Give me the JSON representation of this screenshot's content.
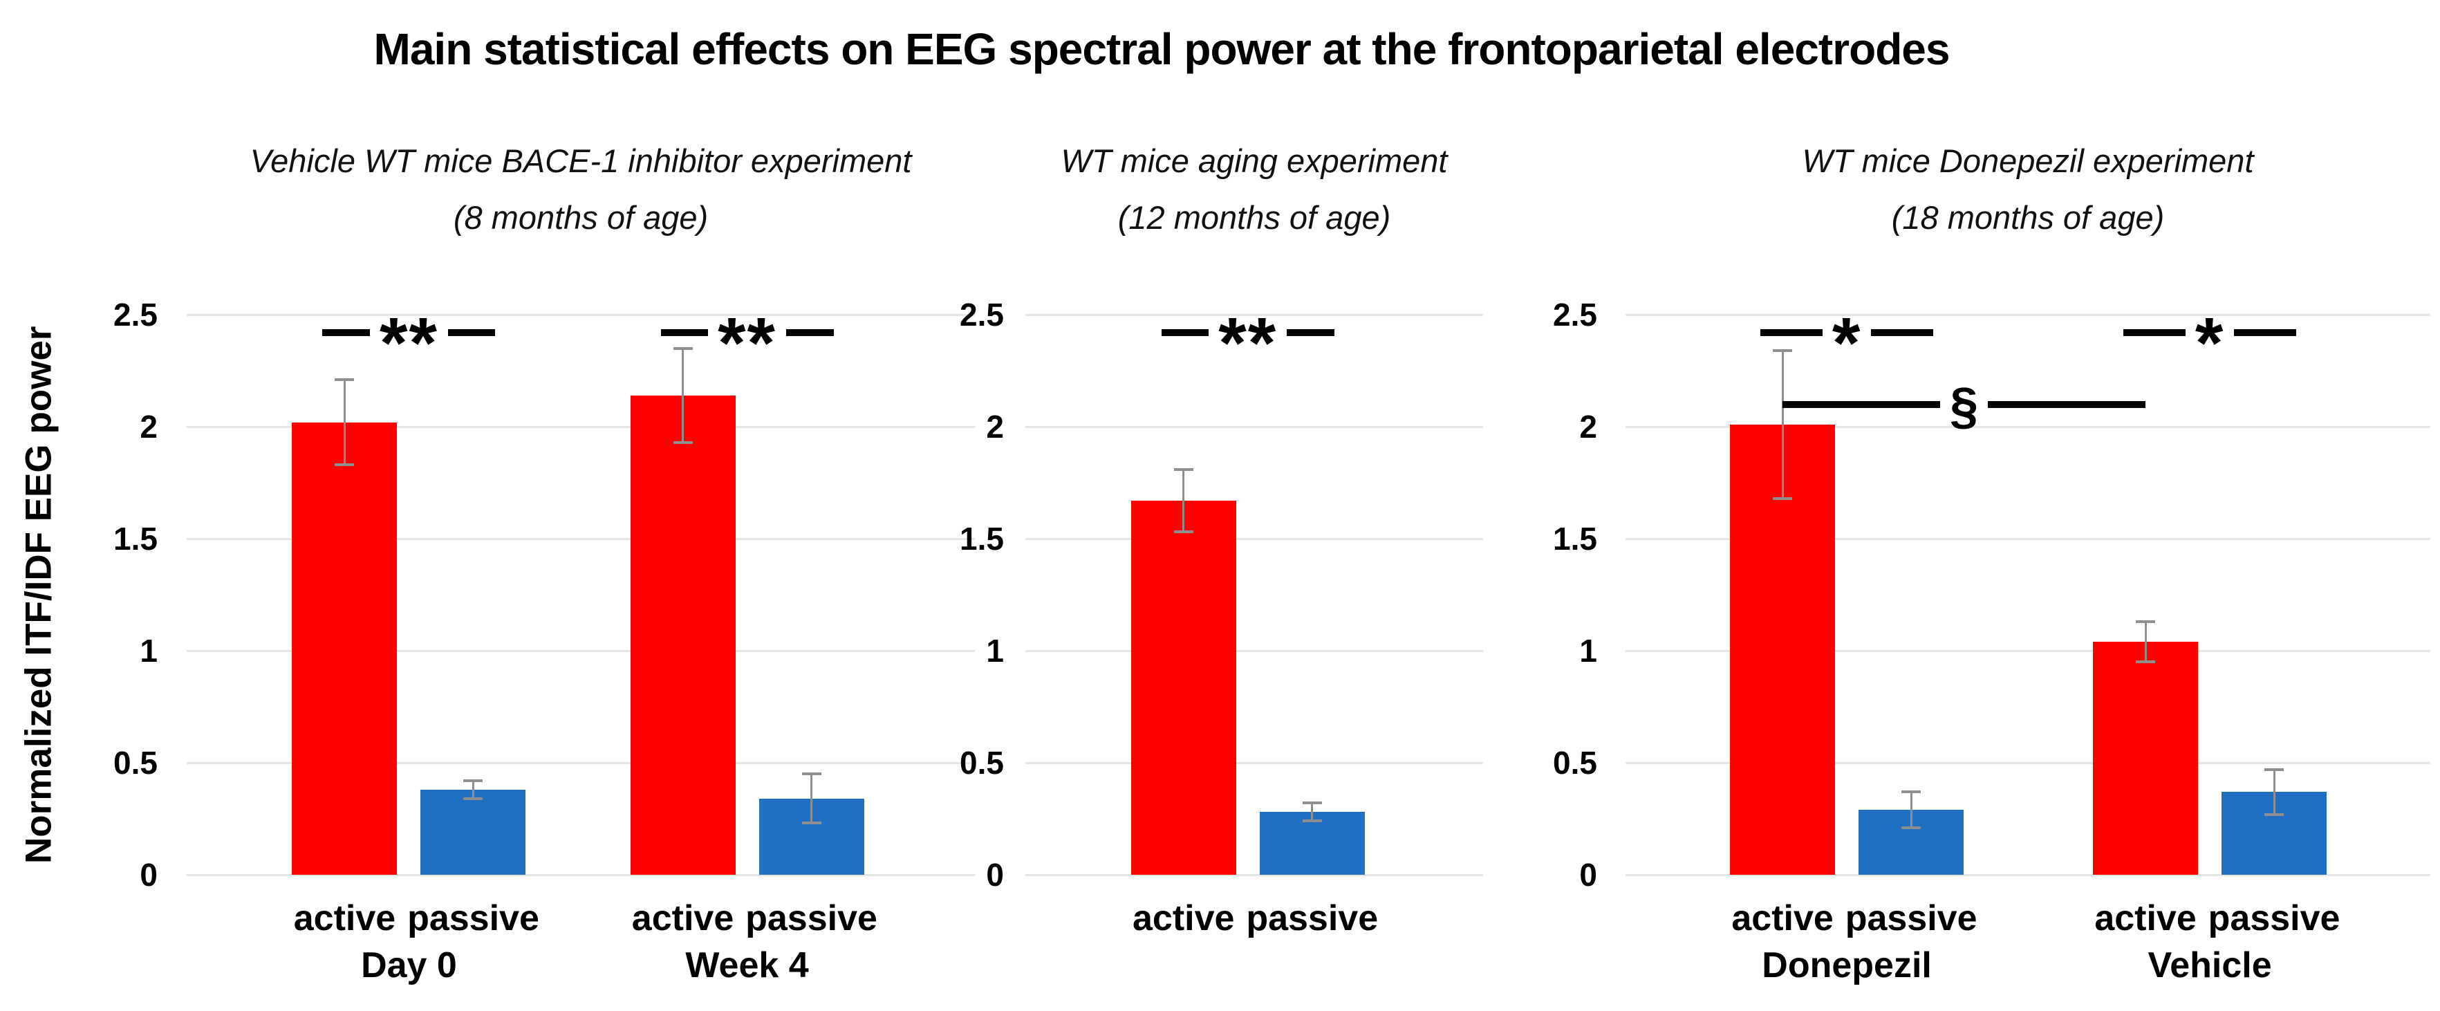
{
  "figure": {
    "title": "Main statistical effects on EEG spectral power at the frontoparietal electrodes",
    "y_axis_label": "Normalized ITF/IDF EEG power"
  },
  "colors": {
    "active_bar": "#ff0000",
    "passive_bar": "#1f6fc2",
    "error_bar": "#8e8e8e",
    "gridline": "#e4e5e5",
    "significance": "#000000"
  },
  "chart_data": [
    {
      "type": "bar",
      "title": "Vehicle WT mice BACE-1 inhibitor experiment",
      "subtitle": "(8 months of age)",
      "ylabel": "Normalized ITF/IDF EEG power",
      "ylim": [
        0,
        2.5
      ],
      "grid": true,
      "yticks": [
        {
          "v": 0,
          "label": "0"
        },
        {
          "v": 0.5,
          "label": "0.5"
        },
        {
          "v": 1,
          "label": "1"
        },
        {
          "v": 1.5,
          "label": "1.5"
        },
        {
          "v": 2,
          "label": "2"
        },
        {
          "v": 2.5,
          "label": "2.5"
        }
      ],
      "groups": [
        {
          "label": "Day 0",
          "bars": [
            {
              "label": "active",
              "series": "active",
              "value": 2.02,
              "error": 0.19
            },
            {
              "label": "passive",
              "series": "passive",
              "value": 0.38,
              "error": 0.04
            }
          ]
        },
        {
          "label": "Week 4",
          "bars": [
            {
              "label": "active",
              "series": "active",
              "value": 2.14,
              "error": 0.21
            },
            {
              "label": "passive",
              "series": "passive",
              "value": 0.34,
              "error": 0.11
            }
          ]
        }
      ],
      "significance": [
        {
          "bar_from": 0,
          "bar_to": 1,
          "y": 2.42,
          "symbol": "**"
        },
        {
          "bar_from": 2,
          "bar_to": 3,
          "y": 2.42,
          "symbol": "**"
        }
      ]
    },
    {
      "type": "bar",
      "title": "WT mice aging experiment",
      "subtitle": "(12 months of age)",
      "ylabel": "Normalized ITF/IDF EEG power",
      "ylim": [
        0,
        2.5
      ],
      "grid": true,
      "yticks": [
        {
          "v": 0,
          "label": "0"
        },
        {
          "v": 0.5,
          "label": "0.5"
        },
        {
          "v": 1,
          "label": "1"
        },
        {
          "v": 1.5,
          "label": "1.5"
        },
        {
          "v": 2,
          "label": "2"
        },
        {
          "v": 2.5,
          "label": "2.5"
        }
      ],
      "groups": [
        {
          "label": "",
          "bars": [
            {
              "label": "active",
              "series": "active",
              "value": 1.67,
              "error": 0.14
            },
            {
              "label": "passive",
              "series": "passive",
              "value": 0.28,
              "error": 0.04
            }
          ]
        }
      ],
      "significance": [
        {
          "bar_from": 0,
          "bar_to": 1,
          "y": 2.42,
          "symbol": "**"
        }
      ]
    },
    {
      "type": "bar",
      "title": "WT mice Donepezil experiment",
      "subtitle": "(18 months of age)",
      "ylabel": "Normalized ITF/IDF EEG power",
      "ylim": [
        0,
        2.5
      ],
      "grid": true,
      "yticks": [
        {
          "v": 0,
          "label": "0"
        },
        {
          "v": 0.5,
          "label": "0.5"
        },
        {
          "v": 1,
          "label": "1"
        },
        {
          "v": 1.5,
          "label": "1.5"
        },
        {
          "v": 2,
          "label": "2"
        },
        {
          "v": 2.5,
          "label": "2.5"
        }
      ],
      "groups": [
        {
          "label": "Donepezil",
          "bars": [
            {
              "label": "active",
              "series": "active",
              "value": 2.01,
              "error": 0.33
            },
            {
              "label": "passive",
              "series": "passive",
              "value": 0.29,
              "error": 0.08
            }
          ]
        },
        {
          "label": "Vehicle",
          "bars": [
            {
              "label": "active",
              "series": "active",
              "value": 1.04,
              "error": 0.09
            },
            {
              "label": "passive",
              "series": "passive",
              "value": 0.37,
              "error": 0.1
            }
          ]
        }
      ],
      "significance": [
        {
          "bar_from": 0,
          "bar_to": 1,
          "y": 2.42,
          "symbol": "*"
        },
        {
          "bar_from": 2,
          "bar_to": 3,
          "y": 2.42,
          "symbol": "*"
        },
        {
          "bar_from": 0,
          "bar_to": 2,
          "y": 2.1,
          "symbol": "§"
        }
      ]
    }
  ]
}
